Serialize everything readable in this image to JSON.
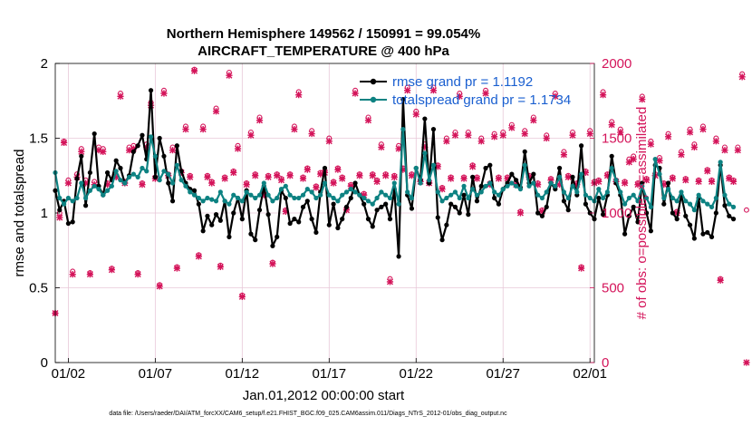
{
  "colors": {
    "rmse": "#000000",
    "spread": "#0d8282",
    "obs": "#d4145a",
    "legend_text": "#1a5fd0",
    "grid": "#e8c8d8"
  },
  "chart_data": {
    "type": "line",
    "title_line1": "Northern Hemisphere 149562 / 150991 = 99.054%",
    "title_line2": "AIRCRAFT_TEMPERATURE @ 400 hPa",
    "xlabel": "Jan.01,2012 00:00:00 start",
    "ylabel_left": "rmse and totalspread",
    "ylabel_right": "# of obs: o=possible; ×=assimilated",
    "footer": "data file: /Users/raeder/DAI/ATM_forcXX/CAM6_setup/f.e21.FHIST_BGC.f09_025.CAM6assim.011/Diags_NTrS_2012-01/obs_diag_output.nc",
    "x_tick_labels": [
      "01/02",
      "01/07",
      "01/12",
      "01/17",
      "01/22",
      "01/27",
      "02/01"
    ],
    "x_tick_days": [
      1,
      6,
      11,
      16,
      21,
      26,
      31
    ],
    "xlim": [
      0.25,
      31.25
    ],
    "ylim_left": [
      0,
      2
    ],
    "y_ticks_left": [
      "0",
      "0.5",
      "1",
      "1.5",
      "2"
    ],
    "y_tick_values_left": [
      0,
      0.5,
      1,
      1.5,
      2
    ],
    "ylim_right": [
      0,
      2000
    ],
    "y_ticks_right": [
      "0",
      "500",
      "1000",
      "1500",
      "2000"
    ],
    "y_tick_values_right": [
      0,
      500,
      1000,
      1500,
      2000
    ],
    "series": [
      {
        "name": "rmse grand pr = 1.1192",
        "label": "rmse grand pr = 1.1192",
        "step_days": 0.25,
        "values": [
          1.15,
          1.02,
          1.08,
          0.93,
          0.94,
          1.23,
          1.38,
          1.05,
          1.27,
          1.53,
          1.18,
          1.12,
          1.27,
          1.22,
          1.35,
          1.3,
          1.2,
          1.25,
          1.41,
          1.45,
          1.52,
          1.36,
          1.82,
          1.24,
          1.5,
          1.38,
          1.2,
          1.08,
          1.45,
          1.28,
          1.2,
          1.16,
          1.15,
          1.06,
          0.88,
          0.98,
          0.92,
          0.99,
          0.95,
          1.08,
          0.84,
          1.0,
          1.1,
          0.96,
          1.15,
          0.86,
          0.82,
          1.02,
          1.18,
          0.99,
          0.78,
          0.84,
          1.15,
          1.1,
          0.93,
          0.96,
          0.94,
          1.04,
          1.08,
          0.96,
          0.87,
          1.14,
          1.3,
          0.92,
          1.06,
          0.9,
          0.96,
          1.04,
          1.1,
          1.2,
          1.12,
          1.06,
          0.96,
          0.91,
          1.02,
          1.04,
          1.06,
          0.96,
          1.16,
          0.71,
          1.76,
          1.12,
          1.03,
          1.3,
          1.22,
          1.63,
          1.2,
          1.56,
          0.97,
          0.82,
          0.92,
          1.06,
          1.04,
          1.0,
          1.12,
          0.99,
          1.24,
          1.08,
          1.18,
          1.3,
          1.32,
          1.1,
          1.06,
          1.16,
          1.2,
          1.26,
          1.22,
          1.17,
          1.41,
          1.2,
          1.26,
          1.0,
          0.98,
          1.04,
          1.2,
          1.16,
          1.3,
          1.08,
          1.02,
          1.24,
          1.12,
          1.45,
          1.06,
          1.0,
          0.96,
          1.1,
          0.99,
          1.12,
          1.38,
          1.2,
          1.12,
          0.86,
          0.98,
          1.04,
          0.94,
          1.2,
          1.0,
          0.88,
          1.32,
          1.3,
          1.06,
          1.2,
          1.0,
          0.96,
          1.12,
          0.98,
          0.92,
          0.83,
          1.1,
          0.86,
          0.87,
          0.84,
          1.0,
          1.32,
          1.05,
          0.98,
          0.96
        ]
      },
      {
        "name": "totalspread grand pr = 1.1734",
        "label": "totalspread grand pr = 1.1734",
        "step_days": 0.25,
        "values": [
          1.27,
          1.1,
          1.06,
          1.1,
          1.08,
          1.1,
          1.2,
          1.1,
          1.15,
          1.18,
          1.16,
          1.12,
          1.15,
          1.18,
          1.28,
          1.22,
          1.2,
          1.24,
          1.26,
          1.24,
          1.3,
          1.28,
          1.51,
          1.38,
          1.22,
          1.28,
          1.26,
          1.2,
          1.32,
          1.22,
          1.18,
          1.14,
          1.12,
          1.1,
          1.08,
          1.1,
          1.09,
          1.08,
          1.14,
          1.08,
          1.06,
          1.12,
          1.1,
          1.08,
          1.14,
          1.12,
          1.1,
          1.12,
          1.2,
          1.12,
          1.08,
          1.1,
          1.16,
          1.18,
          1.12,
          1.1,
          1.1,
          1.12,
          1.16,
          1.14,
          1.1,
          1.12,
          1.2,
          1.12,
          1.1,
          1.08,
          1.12,
          1.14,
          1.16,
          1.14,
          1.12,
          1.1,
          1.08,
          1.06,
          1.1,
          1.14,
          1.12,
          1.1,
          1.2,
          1.06,
          1.56,
          1.14,
          1.1,
          1.3,
          1.2,
          1.4,
          1.22,
          1.32,
          1.14,
          1.08,
          1.1,
          1.12,
          1.14,
          1.1,
          1.18,
          1.1,
          1.16,
          1.12,
          1.14,
          1.18,
          1.2,
          1.14,
          1.12,
          1.16,
          1.18,
          1.2,
          1.18,
          1.16,
          1.32,
          1.18,
          1.2,
          1.12,
          1.1,
          1.14,
          1.2,
          1.18,
          1.24,
          1.14,
          1.1,
          1.18,
          1.14,
          1.26,
          1.12,
          1.1,
          1.08,
          1.16,
          1.1,
          1.14,
          1.3,
          1.22,
          1.14,
          1.06,
          1.1,
          1.12,
          1.08,
          1.18,
          1.1,
          1.04,
          1.36,
          1.26,
          1.1,
          1.16,
          1.1,
          1.08,
          1.14,
          1.08,
          1.06,
          1.02,
          1.12,
          1.08,
          1.06,
          1.04,
          1.1,
          1.34,
          1.12,
          1.06,
          1.04
        ]
      }
    ],
    "obs_possible": {
      "name": "possible",
      "step_days": 0.25,
      "values": [
        330,
        1000,
        1480,
        1220,
        610,
        1260,
        1430,
        1220,
        600,
        1210,
        1440,
        1430,
        1200,
        630,
        1250,
        1800,
        1210,
        1440,
        1450,
        600,
        1200,
        1460,
        1740,
        1240,
        520,
        1820,
        1260,
        1440,
        640,
        1280,
        1580,
        1250,
        1960,
        720,
        1580,
        1250,
        1210,
        1700,
        650,
        1240,
        1940,
        1280,
        1450,
        450,
        1200,
        1540,
        1260,
        1640,
        1130,
        1250,
        670,
        1260,
        1230,
        1020,
        1260,
        1580,
        1810,
        1240,
        1300,
        1550,
        1180,
        1270,
        1280,
        1500,
        1210,
        1300,
        1240,
        1030,
        1190,
        1820,
        1260,
        1130,
        1640,
        1260,
        1220,
        1460,
        1260,
        560,
        1250,
        1450,
        1300,
        1840,
        1260,
        1680,
        1220,
        1460,
        1210,
        1840,
        1320,
        1170,
        1500,
        1240,
        1540,
        1800,
        1240,
        1540,
        1320,
        1240,
        1500,
        1820,
        1200,
        1530,
        1240,
        1540,
        1240,
        1590,
        1200,
        1010,
        1550,
        1250,
        1640,
        1200,
        1020,
        1520,
        1230,
        1800,
        1200,
        1410,
        1250,
        1540,
        1200,
        640,
        1280,
        1550,
        1210,
        1220,
        1810,
        1260,
        1610,
        1220,
        1560,
        1210,
        1360,
        1380,
        1200,
        1780,
        1230,
        1480,
        1260,
        1370,
        1200,
        1530,
        1240,
        1010,
        1410,
        1230,
        1560,
        1460,
        1220,
        1580,
        1290,
        1220,
        1500,
        560,
        1440,
        1240,
        1220,
        1440,
        1930,
        1020
      ]
    },
    "obs_assimilated": {
      "name": "assimilated",
      "step_days": 0.25,
      "values": [
        330,
        970,
        1470,
        1200,
        590,
        1240,
        1410,
        1200,
        590,
        1190,
        1420,
        1410,
        1190,
        620,
        1240,
        1780,
        1200,
        1420,
        1430,
        590,
        1190,
        1440,
        1720,
        1230,
        510,
        1800,
        1250,
        1420,
        630,
        1270,
        1560,
        1240,
        1950,
        710,
        1560,
        1240,
        1200,
        1680,
        640,
        1230,
        1920,
        1270,
        1430,
        440,
        1190,
        1520,
        1250,
        1620,
        1120,
        1240,
        660,
        1250,
        1220,
        1010,
        1250,
        1560,
        1790,
        1230,
        1290,
        1530,
        1170,
        1260,
        1270,
        1480,
        1200,
        1290,
        1230,
        1020,
        1180,
        1800,
        1250,
        1120,
        1620,
        1250,
        1210,
        1440,
        1250,
        540,
        1240,
        1430,
        1290,
        1820,
        1250,
        1660,
        1210,
        1440,
        1200,
        1820,
        1310,
        1160,
        1480,
        1230,
        1520,
        1780,
        1230,
        1520,
        1310,
        1230,
        1480,
        1800,
        1190,
        1510,
        1230,
        1520,
        1230,
        1570,
        1190,
        1000,
        1530,
        1240,
        1620,
        1190,
        1010,
        1500,
        1220,
        1780,
        1190,
        1390,
        1240,
        1520,
        1190,
        630,
        1270,
        1530,
        1200,
        1210,
        1790,
        1250,
        1590,
        1210,
        1540,
        1200,
        1340,
        1360,
        1190,
        1760,
        1220,
        1460,
        1250,
        1350,
        1190,
        1510,
        1230,
        1000,
        1390,
        1220,
        1540,
        1440,
        1210,
        1560,
        1280,
        1210,
        1480,
        550,
        1420,
        1230,
        1210,
        1420,
        1910,
        0
      ]
    }
  }
}
